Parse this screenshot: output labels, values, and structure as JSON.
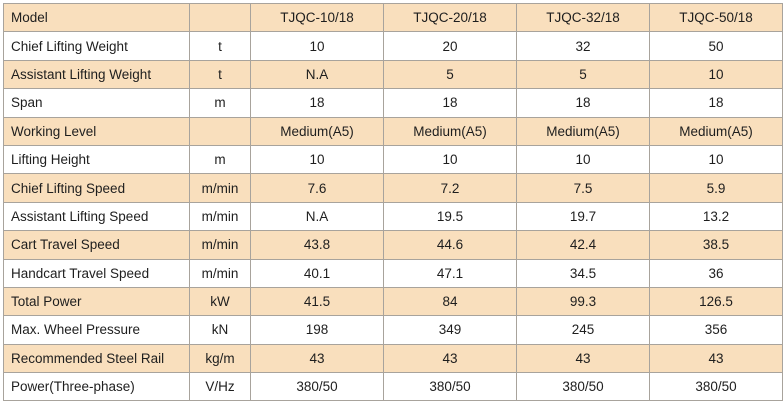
{
  "header": {
    "label": "Model",
    "unit": "",
    "models": [
      "TJQC-10/18",
      "TJQC-20/18",
      "TJQC-32/18",
      "TJQC-50/18"
    ]
  },
  "rows": [
    {
      "label": "Chief Lifting Weight",
      "unit": "t",
      "values": [
        "10",
        "20",
        "32",
        "50"
      ]
    },
    {
      "label": "Assistant Lifting Weight",
      "unit": "t",
      "values": [
        "N.A",
        "5",
        "5",
        "10"
      ]
    },
    {
      "label": "Span",
      "unit": "m",
      "values": [
        "18",
        "18",
        "18",
        "18"
      ]
    },
    {
      "label": "Working Level",
      "unit": "",
      "values": [
        "Medium(A5)",
        "Medium(A5)",
        "Medium(A5)",
        "Medium(A5)"
      ]
    },
    {
      "label": "Lifting Height",
      "unit": "m",
      "values": [
        "10",
        "10",
        "10",
        "10"
      ]
    },
    {
      "label": "Chief Lifting Speed",
      "unit": "m/min",
      "values": [
        "7.6",
        "7.2",
        "7.5",
        "5.9"
      ]
    },
    {
      "label": "Assistant Lifting Speed",
      "unit": "m/min",
      "values": [
        "N.A",
        "19.5",
        "19.7",
        "13.2"
      ]
    },
    {
      "label": "Cart Travel Speed",
      "unit": "m/min",
      "values": [
        "43.8",
        "44.6",
        "42.4",
        "38.5"
      ]
    },
    {
      "label": "Handcart Travel Speed",
      "unit": "m/min",
      "values": [
        "40.1",
        "47.1",
        "34.5",
        "36"
      ]
    },
    {
      "label": "Total Power",
      "unit": "kW",
      "values": [
        "41.5",
        "84",
        "99.3",
        "126.5"
      ]
    },
    {
      "label": "Max. Wheel Pressure",
      "unit": "kN",
      "values": [
        "198",
        "349",
        "245",
        "356"
      ]
    },
    {
      "label": "Recommended Steel Rail",
      "unit": "kg/m",
      "values": [
        "43",
        "43",
        "43",
        "43"
      ]
    },
    {
      "label": "Power(Three-phase)",
      "unit": "V/Hz",
      "values": [
        "380/50",
        "380/50",
        "380/50",
        "380/50"
      ]
    }
  ]
}
